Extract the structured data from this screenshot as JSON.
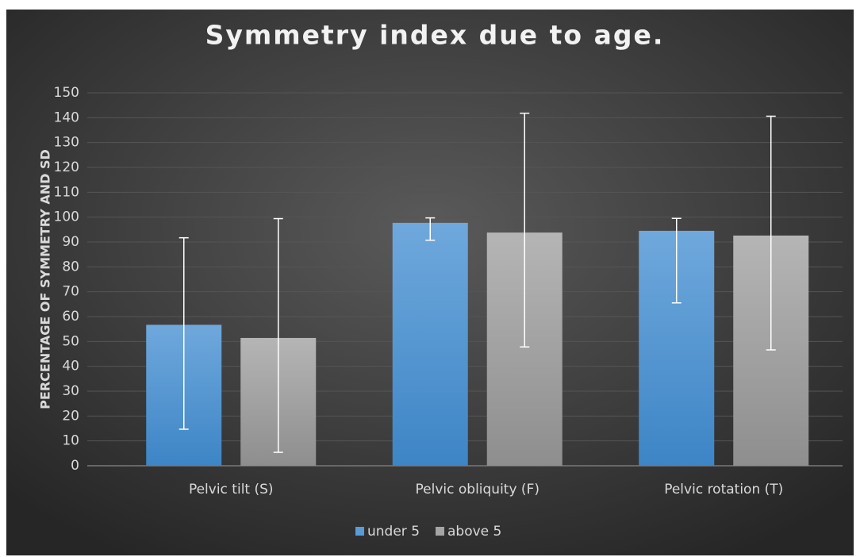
{
  "chart_data": {
    "type": "bar",
    "title": "Symmetry index due to age.",
    "y_label": "PERCENTAGE OF SYMMETRY AND SD",
    "categories": [
      "Pelvic tilt (S)",
      "Pelvic obliquity (F)",
      "Pelvic rotation  (T)"
    ],
    "series": [
      {
        "name": "under 5",
        "color": "#5b9bd5",
        "values": [
          56.7,
          97.7,
          94.5
        ],
        "error_plus": [
          35,
          2,
          5
        ],
        "error_minus": [
          42,
          7,
          29
        ]
      },
      {
        "name": "above 5",
        "color": "#a5a5a5",
        "values": [
          51.4,
          93.8,
          92.6
        ],
        "error_plus": [
          48,
          48,
          48
        ],
        "error_minus": [
          46,
          46,
          46
        ]
      }
    ],
    "ylim": [
      0,
      150
    ],
    "yticks": [
      0,
      10,
      20,
      30,
      40,
      50,
      60,
      70,
      80,
      90,
      100,
      110,
      120,
      130,
      140,
      150
    ],
    "grid": true,
    "legend": "bottom"
  }
}
